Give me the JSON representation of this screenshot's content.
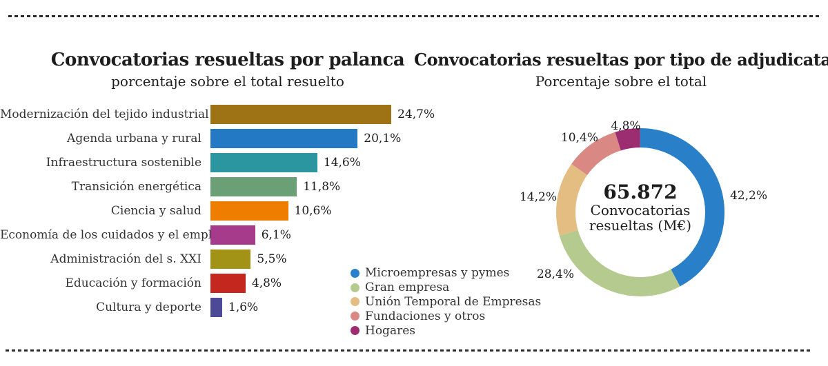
{
  "accent_text_color": "#1d1d1d",
  "chart_data": [
    {
      "type": "bar",
      "orientation": "horizontal",
      "title": "Convocatorias resueltas por palanca",
      "subtitle": "porcentaje sobre el total resuelto",
      "unit": "%",
      "xlim": [
        0,
        25
      ],
      "grid": false,
      "categories": [
        "Modernización del tejido industrial",
        "Agenda urbana y rural",
        "Infraestructura sostenible",
        "Transición energética",
        "Ciencia y salud",
        "Economía de los cuidados y el empleo",
        "Administración del s. XXI",
        "Educación y formación",
        "Cultura y deporte"
      ],
      "values": [
        24.7,
        20.1,
        14.6,
        11.8,
        10.6,
        6.1,
        5.5,
        4.8,
        1.6
      ],
      "value_labels": [
        "24,7%",
        "20,1%",
        "14,6%",
        "11,8%",
        "10,6%",
        "6,1%",
        "5,5%",
        "4,8%",
        "1,6%"
      ],
      "colors": [
        "#9D7315",
        "#2379C4",
        "#2C96A0",
        "#6BA077",
        "#EE7D00",
        "#A63A8B",
        "#A29215",
        "#C3271D",
        "#4C4A96"
      ]
    },
    {
      "type": "pie",
      "subtype": "donut",
      "title": "Convocatorias resueltas por tipo de adjudicatario",
      "subtitle": "Porcentaje sobre el total",
      "start_angle_deg": 0,
      "direction": "clockwise",
      "legend_position": "bottom-left",
      "center_text": {
        "value": "65.872",
        "label_lines": [
          "Convocatorias",
          "resueltas (M€)"
        ]
      },
      "slices": [
        {
          "label": "Microempresas y pymes",
          "value": 42.2,
          "display": "42,2%",
          "color": "#2980C8"
        },
        {
          "label": "Gran empresa",
          "value": 28.4,
          "display": "28,4%",
          "color": "#B5CA8E"
        },
        {
          "label": "Unión Temporal de Empresas",
          "value": 14.2,
          "display": "14,2%",
          "color": "#E3BD81"
        },
        {
          "label": "Fundaciones y otros",
          "value": 10.4,
          "display": "10,4%",
          "color": "#D98884"
        },
        {
          "label": "Hogares",
          "value": 4.8,
          "display": "4,8%",
          "color": "#9C2D70"
        }
      ]
    }
  ]
}
